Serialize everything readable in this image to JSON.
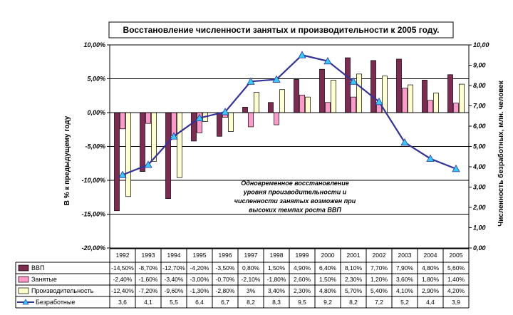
{
  "chart_data": {
    "type": "bar",
    "title": "Восстановление численности занятых и производительности к 2005 году.",
    "ylabel_left": "В % к предыдущему году",
    "ylabel_right": "Численность безработных, млн. человек",
    "ylim_left": [
      -20,
      10
    ],
    "ylim_right": [
      0,
      10
    ],
    "yticks_left": [
      "10,00%",
      "5,00%",
      "0,00%",
      "-5,00%",
      "-10,00%",
      "-15,00%",
      "-20,00%"
    ],
    "yticks_right": [
      "10,00",
      "9,00",
      "8,00",
      "7,00",
      "6,00",
      "5,00",
      "4,00",
      "3,00",
      "2,00",
      "1,00",
      "0,00"
    ],
    "grid": true,
    "annotation": [
      "Одновременное восстановление",
      "уровня производительности и",
      "численности занятых возможен при",
      "высоких темпах роста ВВП"
    ],
    "categories": [
      "1992",
      "1993",
      "1994",
      "1995",
      "1996",
      "1997",
      "1998",
      "1999",
      "2000",
      "2001",
      "2002",
      "2003",
      "2004",
      "2005"
    ],
    "series": [
      {
        "name": "ВВП",
        "kind": "bar",
        "axis": "left",
        "color": "#7f2a52",
        "values": [
          -14.5,
          -8.7,
          -12.7,
          -4.2,
          -3.5,
          0.8,
          1.5,
          4.9,
          6.4,
          8.1,
          7.7,
          7.9,
          4.8,
          5.6
        ],
        "labels": [
          "-14,50%",
          "-8,70%",
          "-12,70%",
          "-4,20%",
          "-3,50%",
          "0,80%",
          "1,50%",
          "4,90%",
          "6,40%",
          "8,10%",
          "7,70%",
          "7,90%",
          "4,80%",
          "5,60%"
        ]
      },
      {
        "name": "Занятые",
        "kind": "bar",
        "axis": "left",
        "color": "#ff99cc",
        "values": [
          -2.4,
          -1.6,
          -3.4,
          -3.0,
          -0.7,
          -2.1,
          -1.8,
          2.6,
          1.5,
          2.3,
          1.2,
          3.6,
          1.8,
          1.4
        ],
        "labels": [
          "-2,40%",
          "-1,60%",
          "-3,40%",
          "-3,00%",
          "-0,70%",
          "-2,10%",
          "-1,80%",
          "2,60%",
          "1,50%",
          "2,30%",
          "1,20%",
          "3,60%",
          "1,80%",
          "1,40%"
        ]
      },
      {
        "name": "Производительность",
        "kind": "bar",
        "axis": "left",
        "color": "#ffffcc",
        "values": [
          -12.4,
          -7.2,
          -9.6,
          -1.3,
          -2.8,
          3.0,
          3.4,
          2.3,
          4.8,
          5.7,
          5.4,
          4.1,
          2.9,
          4.2
        ],
        "labels": [
          "-12,40%",
          "-7,20%",
          "-9,60%",
          "-1,30%",
          "-2,80%",
          "3%",
          "3,40%",
          "2,30%",
          "4,80%",
          "5,70%",
          "5,40%",
          "4,10%",
          "2,90%",
          "4,20%"
        ]
      },
      {
        "name": "Безработные",
        "kind": "line",
        "axis": "right",
        "color": "#333399",
        "marker_color": "#33ccff",
        "values": [
          3.6,
          4.1,
          5.5,
          6.4,
          6.7,
          8.2,
          8.3,
          9.5,
          9.2,
          8.2,
          7.2,
          5.2,
          4.4,
          3.9
        ],
        "labels": [
          "3,6",
          "4,1",
          "5,5",
          "6,4",
          "6,7",
          "8,2",
          "8,3",
          "9,5",
          "9,2",
          "8,2",
          "7,2",
          "5,2",
          "4,4",
          "3,9"
        ]
      }
    ]
  }
}
